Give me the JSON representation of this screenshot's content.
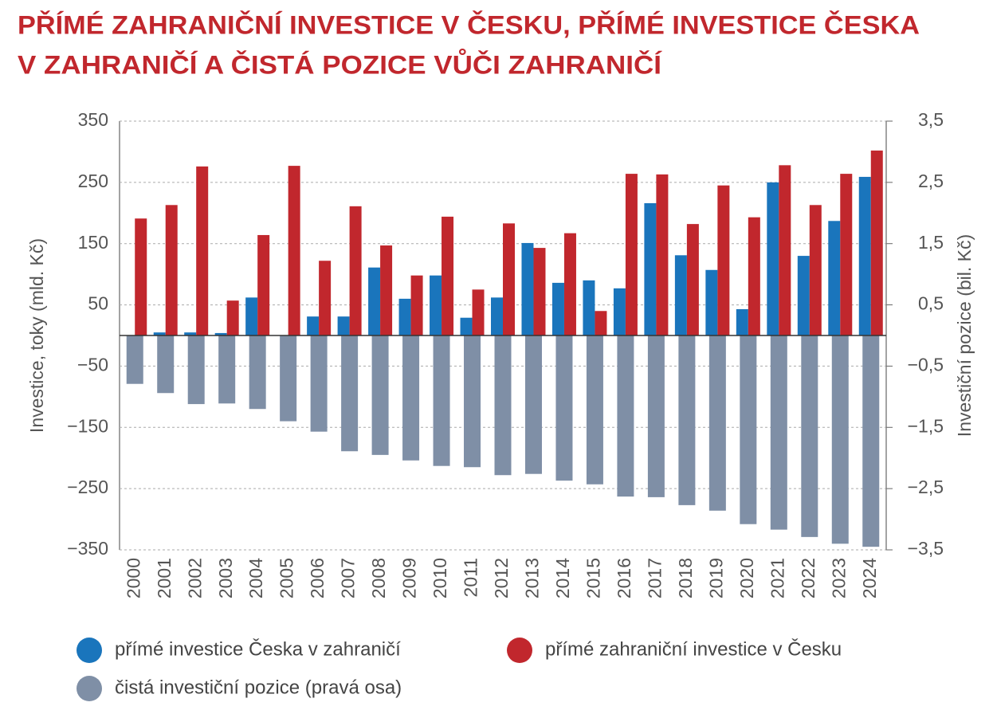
{
  "chart_data": {
    "type": "bar",
    "title": [
      "PŘÍMÉ ZAHRANIČNÍ INVESTICE V ČESKU, PŘÍMÉ INVESTICE ČESKA",
      "V ZAHRANIČÍ A ČISTÁ POZICE VŮČI ZAHRANIČÍ"
    ],
    "y_label": "Investice, toky (mld. Kč)",
    "y2_label": "Investiční pozice (bil. Kč)",
    "categories": [
      "2000",
      "2001",
      "2002",
      "2003",
      "2004",
      "2005",
      "2006",
      "2007",
      "2008",
      "2009",
      "2010",
      "2011",
      "2012",
      "2013",
      "2014",
      "2015",
      "2016",
      "2017",
      "2018",
      "2019",
      "2020",
      "2021",
      "2022",
      "2023",
      "2024"
    ],
    "series": [
      {
        "name": "přímé investice Česka v zahraničí",
        "color": "#1a75bc",
        "values": [
          0,
          5,
          5,
          4,
          62,
          0,
          31,
          31,
          111,
          60,
          98,
          29,
          62,
          151,
          86,
          90,
          77,
          216,
          131,
          107,
          43,
          250,
          130,
          187,
          259
        ]
      },
      {
        "name": "přímé zahraniční investice v Česku",
        "color": "#c1272d",
        "values": [
          191,
          213,
          276,
          57,
          164,
          277,
          122,
          211,
          147,
          98,
          194,
          75,
          183,
          143,
          167,
          40,
          264,
          263,
          182,
          245,
          193,
          278,
          213,
          264,
          302
        ]
      },
      {
        "name": "čistá investiční pozice (pravá osa)",
        "color": "#7f8fa6",
        "axis": "y2",
        "values": [
          -0.79,
          -0.94,
          -1.12,
          -1.11,
          -1.2,
          -1.4,
          -1.57,
          -1.89,
          -1.95,
          -2.04,
          -2.13,
          -2.15,
          -2.28,
          -2.26,
          -2.37,
          -2.43,
          -2.63,
          -2.64,
          -2.77,
          -2.86,
          -3.08,
          -3.17,
          -3.29,
          -3.4,
          -3.45
        ]
      }
    ],
    "ylim": [
      -350,
      350
    ],
    "yticks": [
      {
        "value": -350,
        "label": "−350"
      },
      {
        "value": -250,
        "label": "−250"
      },
      {
        "value": -150,
        "label": "−150"
      },
      {
        "value": -50,
        "label": "−50"
      },
      50,
      150,
      250,
      350
    ],
    "y2lim": [
      -3.5,
      3.5
    ],
    "y2ticks": [
      {
        "value": -3.5,
        "label": "−3,5"
      },
      {
        "value": -2.5,
        "label": "−2,5"
      },
      {
        "value": -1.5,
        "label": "−1,5"
      },
      {
        "value": -0.5,
        "label": "−0,5"
      },
      {
        "value": 0.5,
        "label": "0,5"
      },
      {
        "value": 1.5,
        "label": "1,5"
      },
      {
        "value": 2.5,
        "label": "2,5"
      },
      {
        "value": 3.5,
        "label": "3,5"
      }
    ],
    "grid": true
  }
}
